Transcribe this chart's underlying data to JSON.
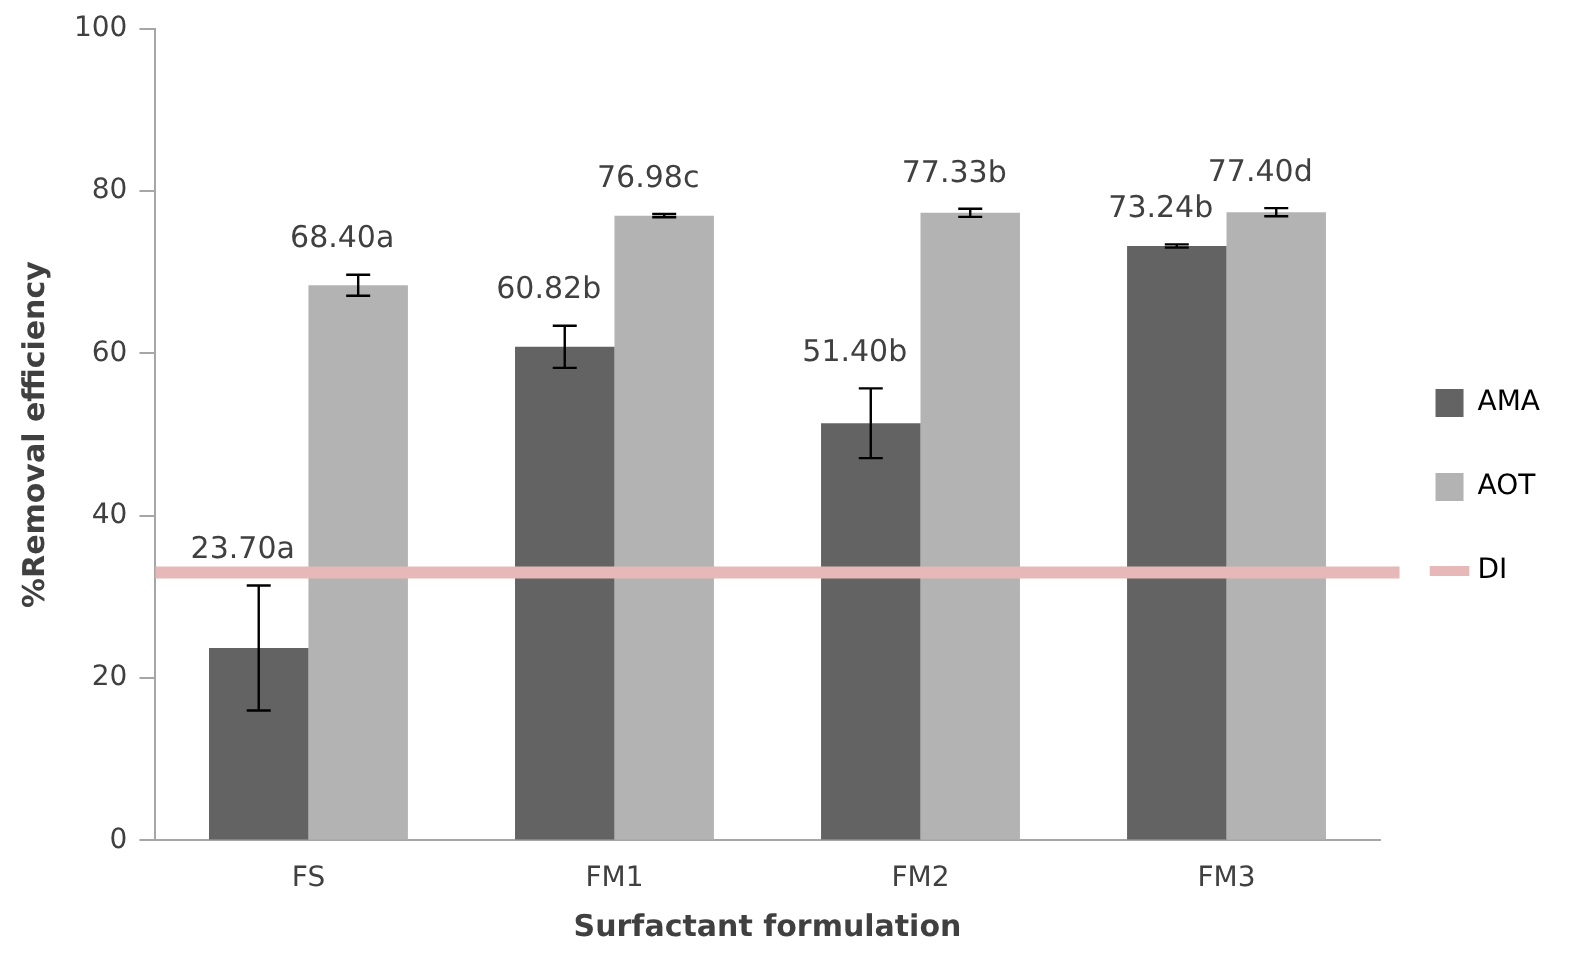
{
  "chart_data": {
    "type": "bar",
    "xlabel": "Surfactant formulation",
    "ylabel": "%Removal efficiency",
    "categories": [
      "FS",
      "FM1",
      "FM2",
      "FM3"
    ],
    "series": [
      {
        "name": "AMA",
        "color": "#636363",
        "values": [
          23.7,
          60.82,
          51.4,
          73.24
        ],
        "errors": [
          7.7,
          2.6,
          4.3,
          0.2
        ],
        "value_labels": [
          "23.70a",
          "60.82b",
          "51.40b",
          "73.24b"
        ]
      },
      {
        "name": "AOT",
        "color": "#b3b3b3",
        "values": [
          68.4,
          76.98,
          77.33,
          77.4
        ],
        "errors": [
          1.3,
          0.2,
          0.5,
          0.5
        ],
        "value_labels": [
          "68.40a",
          "76.98c",
          "77.33b",
          "77.40d"
        ]
      }
    ],
    "ref_lines": [
      {
        "axis": "y",
        "value": 33,
        "label": "DI",
        "color": "#e6b8b7"
      }
    ],
    "ylim": [
      0,
      100
    ],
    "yticks": [
      0,
      20,
      40,
      60,
      80,
      100
    ],
    "grid": false,
    "legend": "right"
  }
}
